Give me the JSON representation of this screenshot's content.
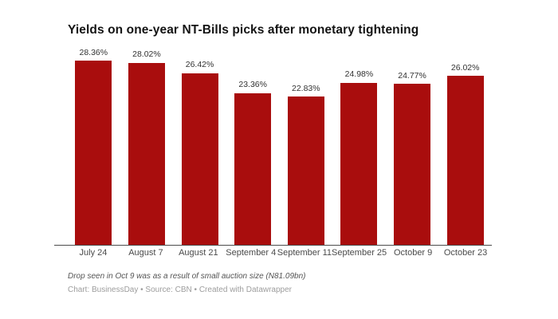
{
  "chart_data": {
    "type": "bar",
    "title": "Yields on one-year NT-Bills picks after monetary tightening",
    "categories": [
      "July 24",
      "August 7",
      "August 21",
      "September 4",
      "September 11",
      "September 25",
      "October 9",
      "October 23"
    ],
    "values": [
      28.36,
      28.02,
      26.42,
      23.36,
      22.83,
      24.98,
      24.77,
      26.02
    ],
    "value_labels": [
      "28.36%",
      "28.02%",
      "26.42%",
      "23.36%",
      "22.83%",
      "24.98%",
      "24.77%",
      "26.02%"
    ],
    "xlabel": "",
    "ylabel": "",
    "ylim": [
      0,
      28.36
    ],
    "grid": false,
    "legend": false,
    "bar_color": "#a90d0d",
    "axis_color": "#4d4d4d",
    "value_label_color": "#323232",
    "tick_label_color": "#4a4a4a"
  },
  "footer": {
    "note": "Drop seen in Oct 9 was as a result of small auction size (N81.09bn)",
    "attribution": "Chart: BusinessDay • Source: CBN • Created with Datawrapper"
  }
}
